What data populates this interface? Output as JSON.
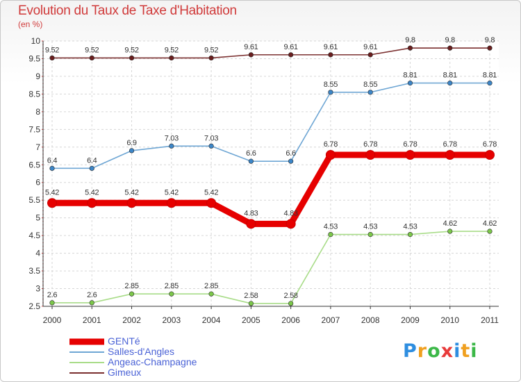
{
  "chart_data": {
    "type": "line",
    "title": "Evolution du Taux de Taxe d'Habitation",
    "subtitle": "(en %)",
    "categories": [
      "2000",
      "2001",
      "2002",
      "2003",
      "2004",
      "2005",
      "2006",
      "2007",
      "2008",
      "2009",
      "2010",
      "2011"
    ],
    "ylim": [
      2.5,
      10
    ],
    "yticks": [
      2.5,
      3,
      3.5,
      4,
      4.5,
      5,
      5.5,
      6,
      6.5,
      7,
      7.5,
      8,
      8.5,
      9,
      9.5,
      10
    ],
    "ytick_labels": [
      "2.5",
      "3",
      "3.5",
      "4",
      "4.5",
      "5",
      "5.5",
      "6",
      "6.5",
      "7",
      "7.5",
      "8",
      "8.5",
      "9",
      "9.5",
      "10"
    ],
    "grid": true,
    "legend_position": "bottom-left",
    "series": [
      {
        "name": "GENTé",
        "color": "#e60000",
        "highlight": true,
        "values": [
          5.42,
          5.42,
          5.42,
          5.42,
          5.42,
          4.83,
          4.83,
          6.78,
          6.78,
          6.78,
          6.78,
          6.78
        ],
        "labels": [
          "5.42",
          "5.42",
          "5.42",
          "5.42",
          "5.42",
          "4.83",
          "4.83",
          "6.78",
          "6.78",
          "6.78",
          "6.78",
          "6.78"
        ]
      },
      {
        "name": "Salles-d'Angles",
        "color": "#6ea6d4",
        "marker": "#3c86c8",
        "highlight": false,
        "values": [
          6.4,
          6.4,
          6.9,
          7.03,
          7.03,
          6.6,
          6.6,
          8.55,
          8.55,
          8.81,
          8.81,
          8.81
        ],
        "labels": [
          "6.4",
          "6.4",
          "6.9",
          "7.03",
          "7.03",
          "6.6",
          "6.6",
          "8.55",
          "8.55",
          "8.81",
          "8.81",
          "8.81"
        ]
      },
      {
        "name": "Angeac-Champagne",
        "color": "#a8dc88",
        "marker": "#7cc84a",
        "highlight": false,
        "values": [
          2.6,
          2.6,
          2.85,
          2.85,
          2.85,
          2.58,
          2.58,
          4.53,
          4.53,
          4.53,
          4.62,
          4.62
        ],
        "labels": [
          "2.6",
          "2.6",
          "2.85",
          "2.85",
          "2.85",
          "2.58",
          "2.58",
          "4.53",
          "4.53",
          "4.53",
          "4.62",
          "4.62"
        ]
      },
      {
        "name": "Gimeux",
        "color": "#7a2e2e",
        "marker": "#6a1e1e",
        "highlight": false,
        "values": [
          9.52,
          9.52,
          9.52,
          9.52,
          9.52,
          9.61,
          9.61,
          9.61,
          9.61,
          9.8,
          9.8,
          9.8
        ],
        "labels": [
          "9.52",
          "9.52",
          "9.52",
          "9.52",
          "9.52",
          "9.61",
          "9.61",
          "9.61",
          "9.61",
          "9.8",
          "9.8",
          "9.8"
        ]
      }
    ]
  },
  "logo": {
    "letters": [
      "P",
      "r",
      "o",
      "x",
      "i",
      "t",
      "i"
    ],
    "colors": [
      "#2e8ee0",
      "#f0a020",
      "#3cb848",
      "#e83a3a",
      "#2e8ee0",
      "#f0a020",
      "#3cb848"
    ]
  }
}
